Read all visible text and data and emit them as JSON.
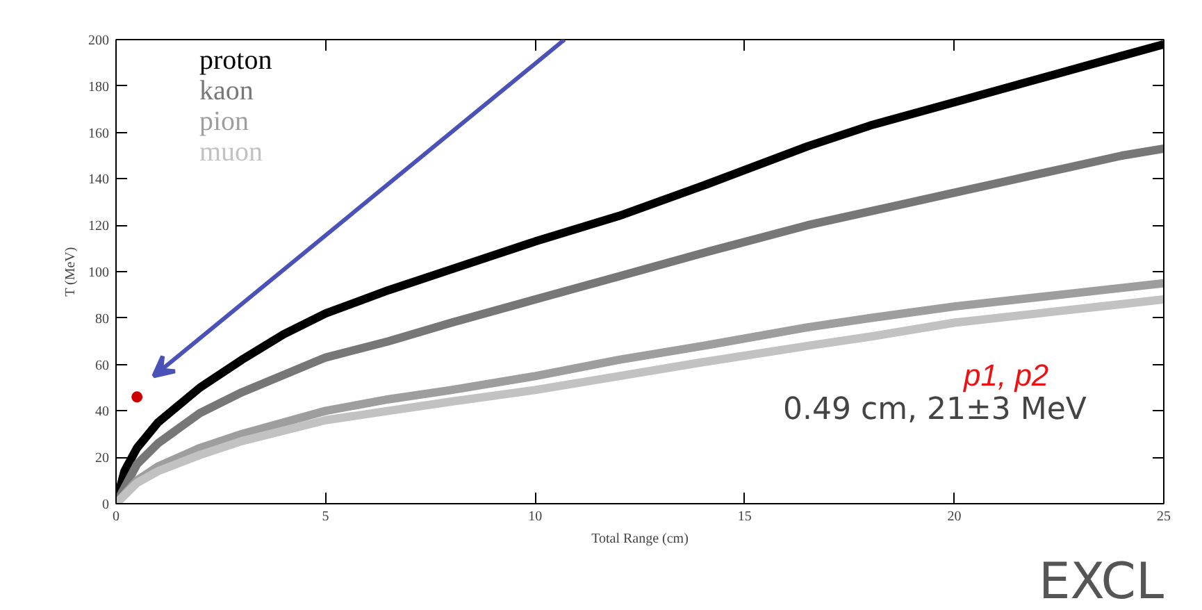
{
  "chart_data": {
    "type": "line",
    "xlabel": "Total Range (cm)",
    "ylabel": "T (MeV)",
    "xlim": [
      0,
      25
    ],
    "ylim": [
      0,
      200
    ],
    "xticks": [
      0,
      5,
      10,
      15,
      20,
      25
    ],
    "yticks": [
      0,
      20,
      40,
      60,
      80,
      100,
      120,
      140,
      160,
      180,
      200
    ],
    "grid": false,
    "legend": "top left",
    "marker": "none",
    "line_style": "solid",
    "series": [
      {
        "name": "proton",
        "color": "#000000",
        "x": [
          0,
          0.2,
          0.5,
          1,
          2,
          3,
          4,
          5,
          6.5,
          8,
          10,
          12,
          14,
          16.5,
          18,
          20,
          22,
          24,
          25
        ],
        "values": [
          0,
          14,
          24,
          35,
          50,
          62,
          73,
          82,
          92,
          101,
          113,
          124,
          137,
          154,
          163,
          173,
          183,
          193,
          198
        ]
      },
      {
        "name": "kaon",
        "color": "#777777",
        "x": [
          0,
          0.5,
          1,
          2,
          3,
          5,
          6.5,
          8,
          10,
          12,
          14,
          16.5,
          18,
          20,
          22,
          24,
          25
        ],
        "values": [
          0,
          17,
          26,
          39,
          48,
          63,
          70,
          78,
          88,
          98,
          108,
          120,
          126,
          134,
          142,
          150,
          153
        ]
      },
      {
        "name": "pion",
        "color": "#9e9e9e",
        "x": [
          0,
          0.5,
          1,
          2,
          3,
          5,
          6.5,
          8,
          10,
          12,
          14,
          16.5,
          18,
          20,
          22,
          24,
          25
        ],
        "values": [
          0,
          10,
          16,
          24,
          30,
          40,
          45,
          49,
          55,
          62,
          68,
          76,
          80,
          85,
          89,
          93,
          95
        ]
      },
      {
        "name": "muon",
        "color": "#c2c2c2",
        "x": [
          0,
          0.5,
          1,
          2,
          3,
          5,
          6.5,
          8,
          10,
          12,
          14,
          16.5,
          18,
          20,
          22,
          24,
          25
        ],
        "values": [
          0,
          9,
          14,
          21,
          27,
          36,
          40,
          44,
          49,
          55,
          61,
          68,
          72,
          78,
          82,
          86,
          88
        ]
      },
      {
        "type": "scatter",
        "color": "#cc0000",
        "marker": "circle",
        "x": [
          0.5
        ],
        "values": [
          46
        ]
      }
    ],
    "annotations": [
      "p1, p2",
      "0.49 cm, 21±3 MeV",
      "EXCL"
    ]
  }
}
